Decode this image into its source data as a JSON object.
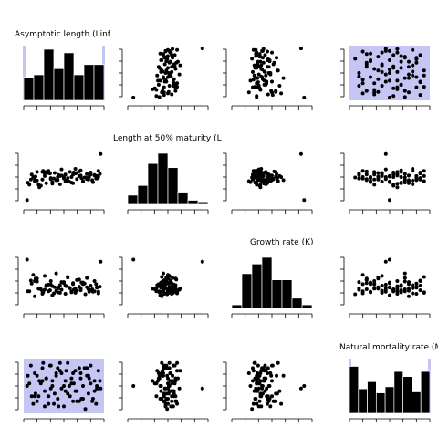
{
  "chart_data": {
    "type": "scatter-matrix",
    "variables": [
      "Asymptotic length (Linf",
      "Length at 50% maturity (L",
      "Growth rate (K)",
      "Natural mortality rate (M"
    ],
    "highlight_color": "#c6c6f5",
    "highlighted_pairs": [
      [
        0,
        3
      ],
      [
        3,
        0
      ]
    ],
    "histograms": [
      {
        "bin_heights": [
          0.45,
          0.5,
          1.0,
          0.62,
          0.93,
          0.5,
          0.7,
          0.7
        ],
        "edge_shading": true
      },
      {
        "bin_heights": [
          0.18,
          0.37,
          0.8,
          1.0,
          0.72,
          0.24,
          0.08,
          0.05
        ],
        "edge_shading": false
      },
      {
        "bin_heights": [
          0.07,
          0.68,
          0.87,
          1.0,
          0.56,
          0.56,
          0.2,
          0.07
        ],
        "edge_shading": false
      },
      {
        "bin_heights": [
          0.92,
          0.48,
          0.62,
          0.4,
          0.52,
          0.82,
          0.72,
          0.42,
          0.82
        ],
        "edge_shading": true
      }
    ],
    "scatter_points": {
      "Linf": [
        0.05,
        0.08,
        0.12,
        0.15,
        0.18,
        0.22,
        0.25,
        0.27,
        0.3,
        0.33,
        0.35,
        0.38,
        0.4,
        0.42,
        0.45,
        0.47,
        0.5,
        0.52,
        0.55,
        0.58,
        0.6,
        0.62,
        0.65,
        0.67,
        0.7,
        0.72,
        0.75,
        0.78,
        0.8,
        0.82,
        0.85,
        0.88,
        0.9,
        0.93,
        0.95,
        0.1,
        0.2,
        0.3,
        0.4,
        0.5,
        0.6,
        0.7,
        0.8,
        0.9,
        0.15,
        0.25,
        0.35,
        0.45,
        0.55,
        0.65,
        0.75,
        0.85,
        0.95,
        0.07,
        0.17,
        0.27,
        0.37,
        0.47,
        0.57,
        0.67,
        0.77,
        0.87,
        0.97,
        0.03,
        0.13,
        0.23,
        0.33,
        0.43,
        0.53,
        0.63,
        0.73,
        0.83,
        0.93,
        0.12,
        0.32,
        0.52,
        0.72,
        0.92,
        0.22,
        0.42,
        0.62,
        0.82,
        0.02,
        0.98
      ],
      "L50": [
        0.35,
        0.55,
        0.42,
        0.6,
        0.3,
        0.45,
        0.52,
        0.38,
        0.62,
        0.48,
        0.4,
        0.58,
        0.44,
        0.5,
        0.36,
        0.65,
        0.47,
        0.55,
        0.42,
        0.6,
        0.5,
        0.38,
        0.57,
        0.46,
        0.52,
        0.63,
        0.41,
        0.49,
        0.56,
        0.45,
        0.59,
        0.4,
        0.53,
        0.47,
        0.62,
        0.5,
        0.33,
        0.58,
        0.44,
        0.51,
        0.39,
        0.61,
        0.46,
        0.54,
        0.43,
        0.57,
        0.37,
        0.52,
        0.48,
        0.66,
        0.42,
        0.55,
        0.5,
        0.45,
        0.35,
        0.6,
        0.47,
        0.53,
        0.41,
        0.58,
        0.49,
        0.44,
        0.56,
        0.39,
        0.51,
        0.62,
        0.46,
        0.54,
        0.43,
        0.59,
        0.48,
        0.5,
        0.52,
        0.45,
        0.57,
        0.41,
        0.53,
        0.47,
        0.6,
        0.44,
        0.55,
        0.49,
        0.05,
        0.95
      ],
      "K": [
        0.3,
        0.45,
        0.2,
        0.55,
        0.35,
        0.25,
        0.6,
        0.4,
        0.3,
        0.5,
        0.22,
        0.38,
        0.65,
        0.28,
        0.42,
        0.33,
        0.48,
        0.25,
        0.58,
        0.36,
        0.3,
        0.44,
        0.27,
        0.52,
        0.39,
        0.32,
        0.47,
        0.24,
        0.56,
        0.35,
        0.41,
        0.29,
        0.5,
        0.37,
        0.26,
        0.62,
        0.34,
        0.43,
        0.31,
        0.46,
        0.28,
        0.53,
        0.38,
        0.3,
        0.49,
        0.33,
        0.4,
        0.27,
        0.57,
        0.36,
        0.44,
        0.32,
        0.29,
        0.51,
        0.35,
        0.42,
        0.26,
        0.48,
        0.37,
        0.31,
        0.45,
        0.34,
        0.39,
        0.3,
        0.55,
        0.28,
        0.43,
        0.36,
        0.4,
        0.33,
        0.47,
        0.29,
        0.38,
        0.5,
        0.32,
        0.41,
        0.35,
        0.44,
        0.3,
        0.37,
        0.46,
        0.34,
        0.92,
        0.88
      ],
      "M": [
        0.55,
        0.3,
        0.75,
        0.2,
        0.6,
        0.85,
        0.4,
        0.65,
        0.15,
        0.9,
        0.5,
        0.35,
        0.7,
        0.25,
        0.8,
        0.45,
        0.1,
        0.6,
        0.95,
        0.3,
        0.55,
        0.75,
        0.4,
        0.2,
        0.85,
        0.65,
        0.5,
        0.05,
        0.7,
        0.35,
        0.9,
        0.25,
        0.6,
        0.45,
        0.8,
        0.15,
        0.55,
        0.3,
        0.75,
        0.5,
        0.65,
        0.2,
        0.85,
        0.4,
        0.7,
        0.1,
        0.6,
        0.95,
        0.35,
        0.8,
        0.25,
        0.55,
        0.45,
        0.9,
        0.3,
        0.65,
        0.15,
        0.75,
        0.5,
        0.4,
        0.85,
        0.2,
        0.6,
        0.7,
        0.35,
        0.95,
        0.45,
        0.1,
        0.8,
        0.55,
        0.25,
        0.65,
        0.5,
        0.3,
        0.9,
        0.4,
        0.75,
        0.15,
        0.6,
        0.85,
        0.2,
        0.7,
        0.5,
        0.45
      ]
    },
    "ticks": {
      "x_count": 7,
      "y_count": 5
    },
    "grid": false,
    "legend": "none"
  }
}
